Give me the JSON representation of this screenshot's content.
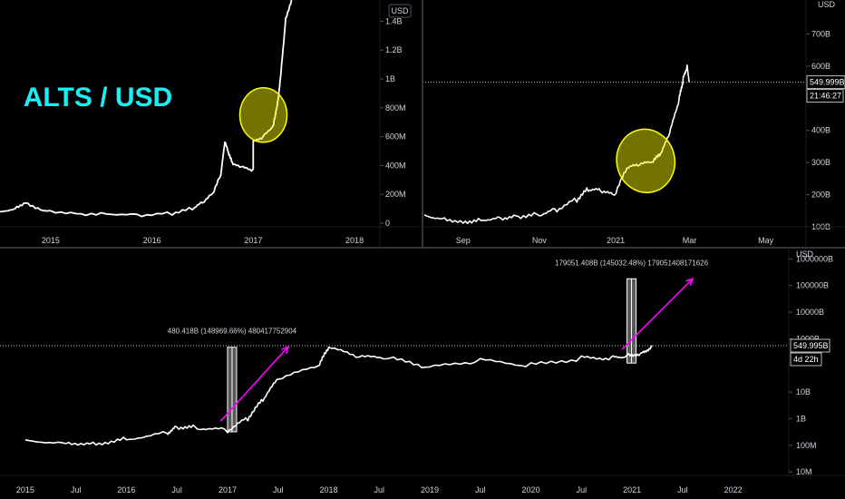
{
  "title": "ALTS / USD",
  "colors": {
    "background": "#000000",
    "price": "#ffffff",
    "title": "#19f0f5",
    "highlight": "#ffff00",
    "arrow": "#ff00ff",
    "separator": "#434651"
  },
  "chart_data": [
    {
      "panel": "top-left",
      "type": "line",
      "currency": "USD",
      "x_ticks": [
        "2015",
        "2016",
        "2017",
        "2018"
      ],
      "y_ticks": [
        "1.4B",
        "1.2B",
        "1B",
        "800M",
        "600M",
        "400M",
        "200M",
        "0"
      ],
      "ylim": [
        0,
        1560000000
      ],
      "points": [
        [
          2014.5,
          80000000
        ],
        [
          2014.65,
          110000000
        ],
        [
          2014.75,
          150000000
        ],
        [
          2014.9,
          100000000
        ],
        [
          2015.0,
          90000000
        ],
        [
          2015.3,
          70000000
        ],
        [
          2015.6,
          70000000
        ],
        [
          2015.9,
          60000000
        ],
        [
          2016.2,
          70000000
        ],
        [
          2016.4,
          100000000
        ],
        [
          2016.5,
          140000000
        ],
        [
          2016.6,
          200000000
        ],
        [
          2016.68,
          330000000
        ],
        [
          2016.72,
          560000000
        ],
        [
          2016.76,
          470000000
        ],
        [
          2016.8,
          400000000
        ],
        [
          2016.9,
          380000000
        ],
        [
          2017.0,
          360000000
        ],
        [
          2017.0,
          560000000
        ],
        [
          2017.1,
          600000000
        ],
        [
          2017.2,
          680000000
        ],
        [
          2017.25,
          880000000
        ],
        [
          2017.28,
          1100000000
        ],
        [
          2017.32,
          1420000000
        ],
        [
          2017.38,
          1560000000
        ]
      ],
      "annotations": [
        {
          "kind": "ellipse",
          "at": [
            2017.1,
            750000000
          ]
        }
      ]
    },
    {
      "panel": "top-right",
      "type": "line",
      "x_ticks": [
        "Sep",
        "Nov",
        "2021",
        "Mar",
        "May"
      ],
      "y_ticks": [
        "700B",
        "600B",
        "400B",
        "300B",
        "200B",
        "100B"
      ],
      "y_axis_label": "USD",
      "ylim": [
        100,
        800
      ],
      "price_tag": "549.999B",
      "countdown_tag": "21:46:27",
      "points": [
        [
          "2020-08-01",
          137
        ],
        [
          "2020-08-15",
          130
        ],
        [
          "2020-09-01",
          118
        ],
        [
          "2020-09-15",
          125
        ],
        [
          "2020-10-01",
          130
        ],
        [
          "2020-10-15",
          135
        ],
        [
          "2020-11-01",
          140
        ],
        [
          "2020-11-15",
          155
        ],
        [
          "2020-12-01",
          185
        ],
        [
          "2020-12-10",
          215
        ],
        [
          "2020-12-20",
          210
        ],
        [
          "2020-12-31",
          195
        ],
        [
          "2021-01-10",
          280
        ],
        [
          "2021-01-20",
          290
        ],
        [
          "2021-01-31",
          300
        ],
        [
          "2021-02-07",
          330
        ],
        [
          "2021-02-14",
          400
        ],
        [
          "2021-02-21",
          500
        ],
        [
          "2021-02-24",
          560
        ],
        [
          "2021-02-27",
          600
        ],
        [
          "2021-03-01",
          550
        ]
      ],
      "annotations": [
        {
          "kind": "ellipse",
          "at": [
            "2021-01-25",
            305
          ]
        }
      ]
    },
    {
      "panel": "bottom",
      "type": "line",
      "scale": "log",
      "x_ticks": [
        "2015",
        "Jul",
        "2016",
        "Jul",
        "2017",
        "Jul",
        "2018",
        "Jul",
        "2019",
        "Jul",
        "2020",
        "Jul",
        "2021",
        "Jul",
        "2022"
      ],
      "y_ticks": [
        "1000000B",
        "100000B",
        "10000B",
        "1000B",
        "10B",
        "1B",
        "100M",
        "10M"
      ],
      "y_axis_label": "USD",
      "price_tag": "549.995B",
      "countdown_tag": "4d 22h",
      "points": [
        [
          2015.0,
          160000000
        ],
        [
          2015.4,
          130000000
        ],
        [
          2015.7,
          120000000
        ],
        [
          2016.0,
          180000000
        ],
        [
          2016.4,
          300000000
        ],
        [
          2016.5,
          500000000
        ],
        [
          2016.7,
          460000000
        ],
        [
          2017.0,
          360000000
        ],
        [
          2017.2,
          1000000000
        ],
        [
          2017.35,
          5000000000
        ],
        [
          2017.5,
          30000000000
        ],
        [
          2017.9,
          90000000000
        ],
        [
          2018.0,
          450000000000
        ],
        [
          2018.3,
          200000000000
        ],
        [
          2018.6,
          180000000000
        ],
        [
          2019.0,
          80000000000
        ],
        [
          2019.5,
          150000000000
        ],
        [
          2020.0,
          100000000000
        ],
        [
          2020.5,
          190000000000
        ],
        [
          2020.8,
          200000000000
        ],
        [
          2020.95,
          240000000000
        ],
        [
          2021.1,
          300000000000
        ],
        [
          2021.2,
          550000000000
        ]
      ],
      "measurements": [
        {
          "label": "480.418B (148969.66%) 480417752904",
          "from": [
            2017.0,
            320000000
          ],
          "to": [
            2017.0,
            481000000000
          ]
        },
        {
          "label": "179051.408B (145032.48%) 179051408171626",
          "from": [
            2020.95,
            122000000000
          ],
          "to": [
            2020.95,
            179051000000000
          ]
        }
      ],
      "arrows": [
        {
          "from": [
            2016.93,
            800000000
          ],
          "to": [
            2017.6,
            500000000000
          ]
        },
        {
          "from": [
            2020.9,
            400000000000
          ],
          "to": [
            2021.6,
            180000000000000
          ]
        }
      ]
    }
  ]
}
